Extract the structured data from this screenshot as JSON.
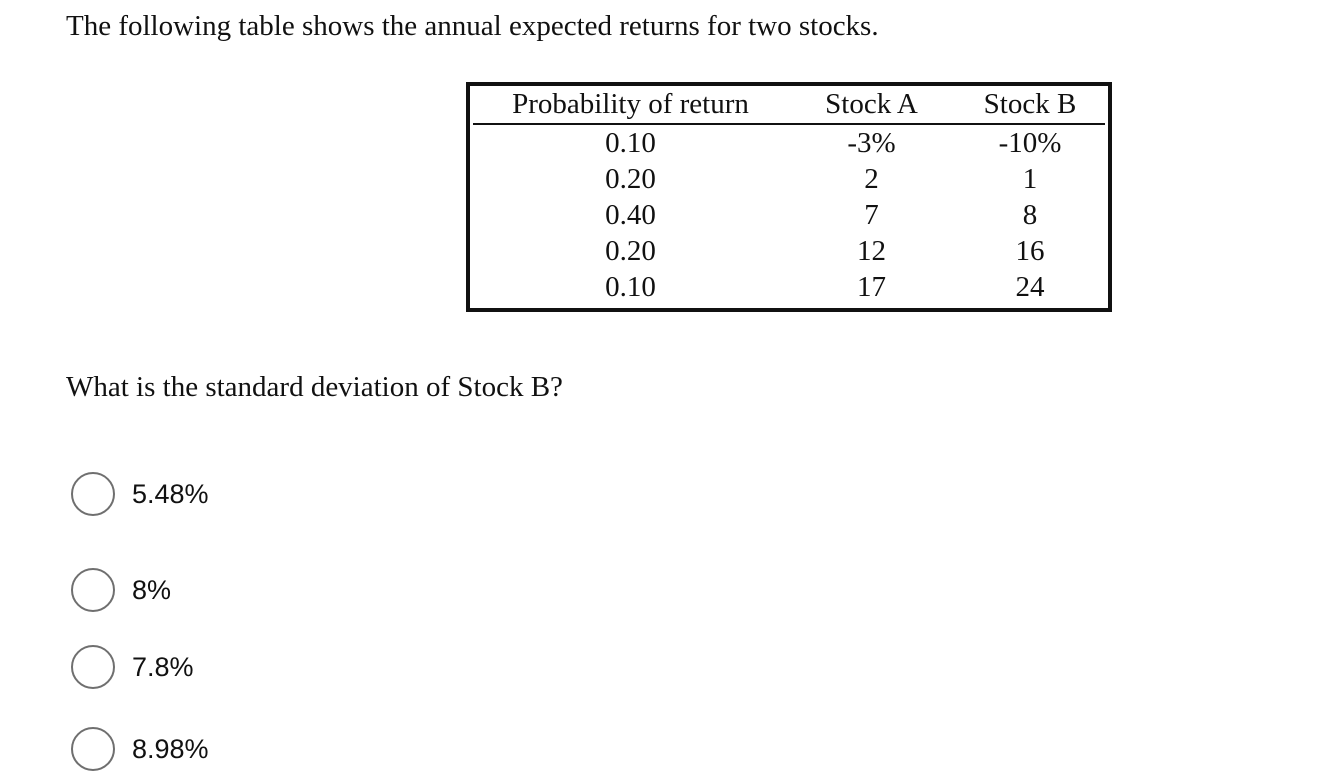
{
  "intro_text": "The following table shows the annual expected returns for two stocks.",
  "table": {
    "headers": [
      "Probability of return",
      "Stock A",
      "Stock B"
    ],
    "rows": [
      [
        "0.10",
        "-3%",
        "-10%"
      ],
      [
        "0.20",
        "2",
        "1"
      ],
      [
        "0.40",
        "7",
        "8"
      ],
      [
        "0.20",
        "12",
        "16"
      ],
      [
        "0.10",
        "17",
        "24"
      ]
    ]
  },
  "question": "What is the standard deviation of Stock B?",
  "options": [
    {
      "label": "5.48%",
      "selected": false
    },
    {
      "label": "8%",
      "selected": false
    },
    {
      "label": "7.8%",
      "selected": false
    },
    {
      "label": "8.98%",
      "selected": false
    }
  ]
}
